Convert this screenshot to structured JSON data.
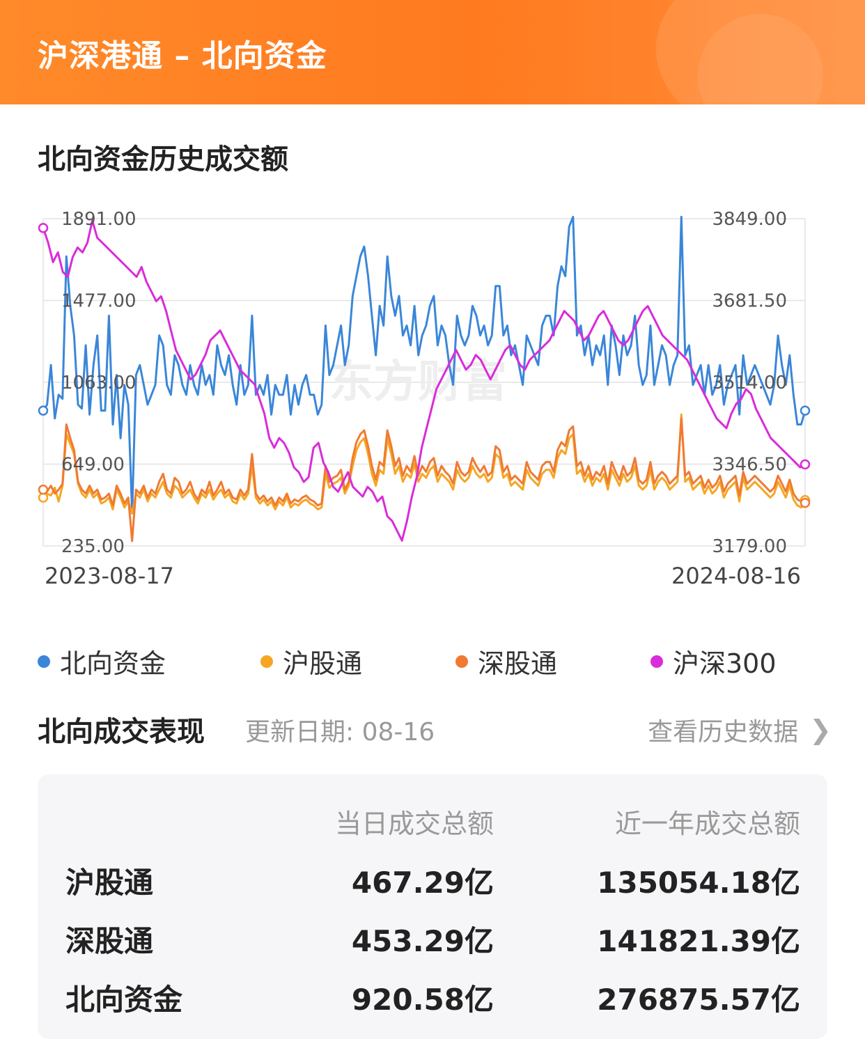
{
  "header": {
    "title": "沪深港通 – 北向资金"
  },
  "section": {
    "title": "北向资金历史成交额"
  },
  "chart_data": {
    "type": "line",
    "start_date": "2023-08-17",
    "end_date": "2024-08-16",
    "left_axis": {
      "ticks": [
        "1891.00",
        "1477.00",
        "1063.00",
        "649.00",
        "235.00"
      ],
      "range": [
        235,
        1891
      ]
    },
    "right_axis": {
      "ticks": [
        "3849.00",
        "3681.50",
        "3514.00",
        "3346.50",
        "3179.00"
      ],
      "range": [
        3179,
        3849
      ]
    },
    "watermark": "东方财富",
    "series": [
      {
        "name": "北向资金",
        "color": "#3a86d9",
        "axis": "left",
        "values": [
          920,
          950,
          1150,
          880,
          1000,
          980,
          1700,
          1450,
          1300,
          950,
          930,
          1250,
          900,
          1150,
          1300,
          920,
          920,
          1400,
          850,
          1100,
          780,
          1050,
          950,
          400,
          1100,
          1150,
          1050,
          950,
          1000,
          1050,
          1300,
          1250,
          1050,
          1000,
          1200,
          1150,
          1050,
          1000,
          1150,
          1050,
          1000,
          1150,
          1050,
          1100,
          1000,
          1250,
          1150,
          1100,
          1200,
          1050,
          950,
          1150,
          1000,
          1050,
          1400,
          1000,
          1050,
          1000,
          1100,
          900,
          1050,
          1000,
          1000,
          1100,
          900,
          1050,
          950,
          1050,
          1100,
          1000,
          1000,
          900,
          950,
          1350,
          1100,
          1150,
          1250,
          1350,
          1150,
          1250,
          1500,
          1600,
          1700,
          1750,
          1600,
          1400,
          1200,
          1450,
          1350,
          1700,
          1500,
          1400,
          1500,
          1300,
          1350,
          1250,
          1450,
          1200,
          1300,
          1350,
          1450,
          1500,
          1250,
          1350,
          1300,
          1150,
          1050,
          1400,
          1300,
          1250,
          1300,
          1450,
          1400,
          1300,
          1350,
          1250,
          1300,
          1550,
          1550,
          1300,
          1350,
          1200,
          1250,
          1150,
          1050,
          1300,
          1250,
          1200,
          1150,
          1350,
          1400,
          1400,
          1300,
          1550,
          1650,
          1600,
          1850,
          1900,
          1300,
          1350,
          1200,
          1300,
          1150,
          1250,
          1200,
          1300,
          1050,
          1350,
          1250,
          1100,
          1300,
          1200,
          1250,
          1400,
          1150,
          1050,
          1100,
          1350,
          1050,
          1150,
          1250,
          1200,
          1050,
          1150,
          1200,
          1900,
          1200,
          1250,
          1050,
          1100,
          1150,
          1000,
          1150,
          1000,
          1050,
          1150,
          950,
          1050,
          1100,
          1150,
          900,
          1200,
          1050,
          1100,
          1150,
          1100,
          1050,
          1000,
          950,
          1050,
          1300,
          1150,
          1050,
          1200,
          1000,
          850,
          850,
          920
        ]
      },
      {
        "name": "沪股通",
        "color": "#f5a623",
        "axis": "left",
        "values": [
          480,
          500,
          490,
          530,
          460,
          540,
          800,
          750,
          700,
          550,
          500,
          480,
          520,
          480,
          500,
          450,
          460,
          480,
          420,
          520,
          480,
          430,
          460,
          400,
          500,
          480,
          520,
          460,
          500,
          480,
          520,
          560,
          500,
          480,
          540,
          520,
          480,
          500,
          520,
          480,
          450,
          500,
          480,
          520,
          470,
          500,
          520,
          480,
          500,
          460,
          450,
          500,
          470,
          500,
          640,
          480,
          450,
          470,
          440,
          460,
          420,
          460,
          440,
          480,
          430,
          450,
          440,
          460,
          470,
          450,
          440,
          420,
          430,
          600,
          530,
          550,
          560,
          580,
          500,
          540,
          640,
          720,
          760,
          780,
          700,
          600,
          540,
          620,
          600,
          780,
          700,
          600,
          640,
          560,
          600,
          580,
          650,
          560,
          600,
          580,
          620,
          640,
          560,
          600,
          580,
          560,
          520,
          620,
          580,
          560,
          580,
          640,
          600,
          580,
          600,
          560,
          580,
          700,
          680,
          580,
          600,
          540,
          560,
          540,
          520,
          620,
          580,
          560,
          540,
          600,
          620,
          620,
          580,
          680,
          720,
          700,
          780,
          800,
          600,
          620,
          560,
          600,
          540,
          580,
          560,
          600,
          520,
          620,
          580,
          540,
          600,
          560,
          580,
          640,
          540,
          520,
          540,
          620,
          520,
          560,
          580,
          560,
          520,
          540,
          560,
          900,
          560,
          580,
          520,
          540,
          560,
          500,
          540,
          500,
          520,
          560,
          480,
          520,
          540,
          560,
          460,
          580,
          520,
          540,
          560,
          540,
          520,
          500,
          480,
          500,
          560,
          520,
          480,
          540,
          470,
          440,
          430,
          467
        ]
      },
      {
        "name": "深股通",
        "color": "#f07a33",
        "axis": "left",
        "values": [
          520,
          510,
          540,
          500,
          520,
          550,
          850,
          780,
          720,
          560,
          520,
          500,
          540,
          500,
          520,
          470,
          480,
          500,
          440,
          540,
          500,
          450,
          480,
          260,
          520,
          500,
          540,
          480,
          520,
          500,
          560,
          600,
          520,
          500,
          580,
          560,
          500,
          520,
          560,
          500,
          470,
          520,
          500,
          560,
          490,
          520,
          560,
          500,
          520,
          480,
          470,
          520,
          490,
          520,
          700,
          500,
          470,
          490,
          460,
          480,
          440,
          480,
          460,
          500,
          450,
          470,
          460,
          480,
          490,
          470,
          460,
          440,
          450,
          640,
          560,
          580,
          590,
          620,
          520,
          560,
          680,
          760,
          800,
          820,
          740,
          640,
          570,
          660,
          640,
          820,
          740,
          640,
          680,
          590,
          640,
          610,
          690,
          590,
          640,
          610,
          660,
          680,
          590,
          640,
          610,
          590,
          550,
          660,
          610,
          590,
          610,
          680,
          640,
          610,
          640,
          590,
          610,
          740,
          720,
          610,
          640,
          570,
          590,
          570,
          550,
          660,
          610,
          590,
          570,
          640,
          660,
          660,
          610,
          720,
          760,
          740,
          820,
          840,
          640,
          660,
          590,
          640,
          570,
          610,
          590,
          640,
          550,
          660,
          610,
          570,
          640,
          590,
          610,
          680,
          570,
          550,
          570,
          660,
          550,
          590,
          610,
          590,
          550,
          570,
          590,
          880,
          590,
          610,
          550,
          570,
          590,
          530,
          570,
          530,
          550,
          590,
          510,
          550,
          570,
          590,
          490,
          610,
          550,
          570,
          590,
          570,
          550,
          530,
          510,
          530,
          590,
          550,
          510,
          570,
          500,
          470,
          460,
          453
        ]
      },
      {
        "name": "沪深300",
        "color": "#d92cd9",
        "axis": "right",
        "values": [
          3830,
          3800,
          3760,
          3780,
          3740,
          3730,
          3770,
          3790,
          3780,
          3800,
          3845,
          3810,
          3800,
          3790,
          3780,
          3770,
          3760,
          3750,
          3740,
          3730,
          3750,
          3720,
          3700,
          3680,
          3690,
          3660,
          3620,
          3580,
          3560,
          3540,
          3520,
          3530,
          3550,
          3570,
          3600,
          3610,
          3620,
          3600,
          3580,
          3560,
          3540,
          3530,
          3520,
          3510,
          3480,
          3450,
          3400,
          3380,
          3400,
          3390,
          3370,
          3340,
          3330,
          3310,
          3320,
          3380,
          3390,
          3350,
          3330,
          3300,
          3290,
          3310,
          3330,
          3300,
          3290,
          3280,
          3300,
          3290,
          3270,
          3280,
          3240,
          3230,
          3210,
          3190,
          3230,
          3280,
          3320,
          3380,
          3420,
          3460,
          3500,
          3520,
          3540,
          3560,
          3580,
          3560,
          3540,
          3550,
          3570,
          3560,
          3540,
          3520,
          3540,
          3560,
          3580,
          3590,
          3570,
          3550,
          3540,
          3560,
          3570,
          3580,
          3590,
          3600,
          3620,
          3640,
          3660,
          3650,
          3640,
          3620,
          3600,
          3610,
          3630,
          3650,
          3660,
          3640,
          3620,
          3600,
          3590,
          3600,
          3620,
          3640,
          3660,
          3670,
          3650,
          3630,
          3610,
          3600,
          3590,
          3580,
          3570,
          3560,
          3540,
          3520,
          3500,
          3480,
          3460,
          3440,
          3430,
          3420,
          3450,
          3470,
          3480,
          3500,
          3490,
          3460,
          3440,
          3420,
          3400,
          3390,
          3380,
          3370,
          3360,
          3350,
          3340,
          3346
        ]
      }
    ]
  },
  "legend": [
    {
      "label": "北向资金",
      "color": "#3a86d9"
    },
    {
      "label": "沪股通",
      "color": "#f5a623"
    },
    {
      "label": "深股通",
      "color": "#f07a33"
    },
    {
      "label": "沪深300",
      "color": "#d92cd9"
    }
  ],
  "performance": {
    "title": "北向成交表现",
    "update_date": "更新日期: 08-16",
    "history_link": "查看历史数据",
    "col_today": "当日成交总额",
    "col_year": "近一年成交总额",
    "rows": [
      {
        "label": "沪股通",
        "today": "467.29亿",
        "year": "135054.18亿"
      },
      {
        "label": "深股通",
        "today": "453.29亿",
        "year": "141821.39亿"
      },
      {
        "label": "北向资金",
        "today": "920.58亿",
        "year": "276875.57亿"
      }
    ]
  }
}
